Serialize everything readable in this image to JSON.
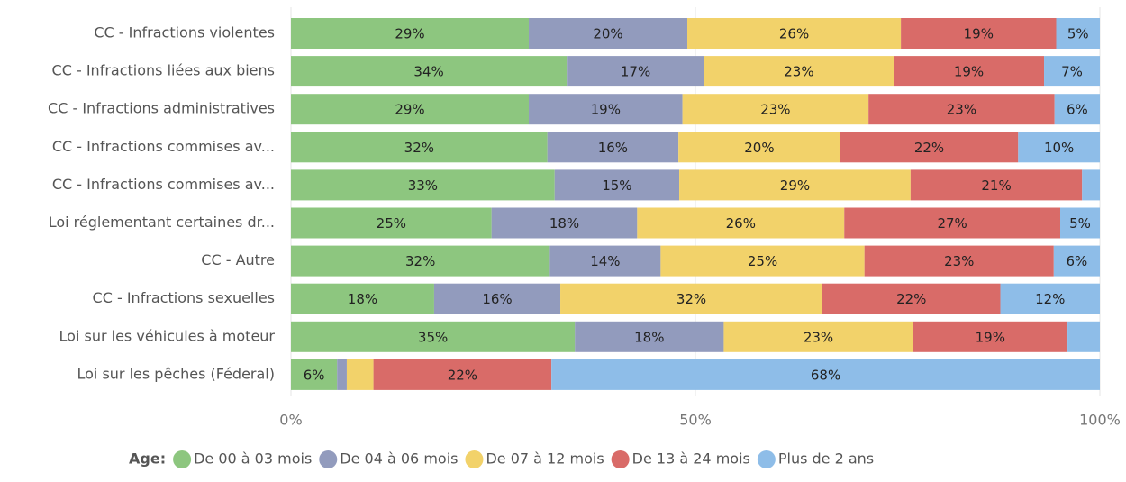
{
  "chart_data": {
    "type": "stacked_bar_horizontal",
    "legend_title": "Age:",
    "categories": [
      "CC - Infractions violentes",
      "CC - Infractions liées aux biens",
      "CC - Infractions administratives",
      "CC - Infractions commises av...",
      "CC - Infractions commises av...",
      "Loi réglementant certaines dr...",
      "CC - Autre",
      "CC - Infractions sexuelles",
      "Loi sur les véhicules à moteur",
      "Loi sur les pêches (Féderal)"
    ],
    "series": [
      {
        "name": "De 00 à 03 mois",
        "color": "#8dc67f",
        "values": [
          29.4,
          34.1,
          29.4,
          31.7,
          32.6,
          24.8,
          32.0,
          17.7,
          35.1,
          5.7
        ],
        "value_labels": [
          "29%",
          "34%",
          "29%",
          "32%",
          "33%",
          "25%",
          "32%",
          "18%",
          "35%",
          "6%"
        ]
      },
      {
        "name": "De 04 à 06 mois",
        "color": "#929bbd",
        "values": [
          19.6,
          17.0,
          19.0,
          16.2,
          15.4,
          18.0,
          13.7,
          15.6,
          18.4,
          1.2
        ],
        "value_labels": [
          "20%",
          "17%",
          "19%",
          "16%",
          "15%",
          "18%",
          "14%",
          "16%",
          "18%",
          null
        ]
      },
      {
        "name": "De 07 à 12 mois",
        "color": "#f2d26a",
        "values": [
          26.4,
          23.4,
          23.0,
          20.0,
          28.6,
          25.6,
          25.2,
          32.4,
          23.4,
          3.3
        ],
        "value_labels": [
          "26%",
          "23%",
          "23%",
          "20%",
          "29%",
          "26%",
          "25%",
          "32%",
          "23%",
          null
        ]
      },
      {
        "name": "De 13 à 24 mois",
        "color": "#d96b68",
        "values": [
          19.2,
          18.6,
          23.0,
          22.0,
          21.2,
          26.7,
          23.4,
          22.0,
          19.1,
          22.0
        ],
        "value_labels": [
          "19%",
          "19%",
          "23%",
          "22%",
          "21%",
          "27%",
          "23%",
          "22%",
          "19%",
          "22%"
        ]
      },
      {
        "name": "Plus de 2 ans",
        "color": "#8ebde8",
        "values": [
          5.4,
          6.9,
          5.6,
          10.1,
          2.2,
          4.9,
          5.7,
          12.3,
          4.0,
          67.8
        ],
        "value_labels": [
          "5%",
          "7%",
          "6%",
          "10%",
          null,
          "5%",
          "6%",
          "12%",
          null,
          "68%"
        ]
      }
    ],
    "xlim": [
      0,
      100
    ],
    "xticks": [
      {
        "value": 0,
        "label": "0%"
      },
      {
        "value": 50,
        "label": "50%"
      },
      {
        "value": 100,
        "label": "100%"
      }
    ],
    "grid": true
  }
}
